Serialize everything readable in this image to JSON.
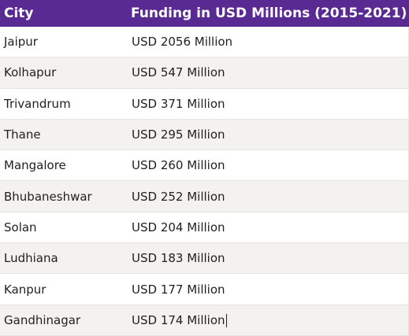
{
  "table": {
    "headers": {
      "city": "City",
      "funding": "Funding in USD Millions (2015-2021)"
    },
    "rows": [
      {
        "city": "Jaipur",
        "funding": "USD 2056 Million"
      },
      {
        "city": "Kolhapur",
        "funding": "USD 547 Million"
      },
      {
        "city": "Trivandrum",
        "funding": "USD 371 Million"
      },
      {
        "city": "Thane",
        "funding": "USD 295 Million"
      },
      {
        "city": "Mangalore",
        "funding": "USD 260 Million"
      },
      {
        "city": "Bhubaneshwar",
        "funding": "USD 252 Million"
      },
      {
        "city": "Solan",
        "funding": "USD 204 Million"
      },
      {
        "city": "Ludhiana",
        "funding": "USD 183 Million"
      },
      {
        "city": "Kanpur",
        "funding": "USD 177 Million"
      },
      {
        "city": "Gandhinagar",
        "funding": "USD 174 Million"
      }
    ]
  },
  "colors": {
    "header_bg": "#5a2a93",
    "header_text": "#ffffff",
    "row_alt_bg": "#f3f2ef",
    "border": "#e3e3e0"
  }
}
